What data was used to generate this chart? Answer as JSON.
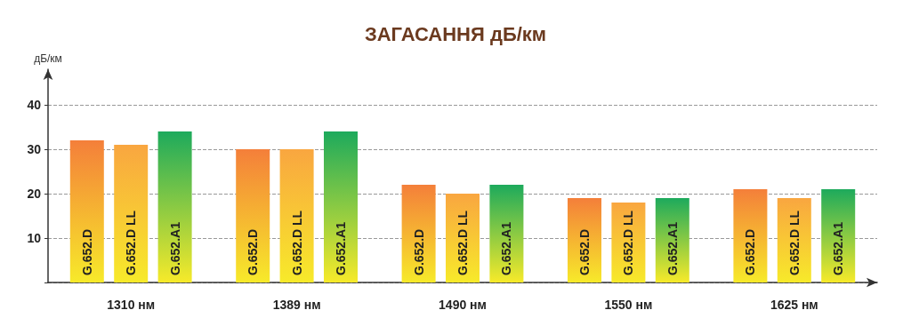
{
  "chart_data": {
    "type": "bar",
    "title": "ЗАГАСАННЯ дБ/км",
    "ylabel": "дБ/км",
    "categories": [
      "1310 нм",
      "1389 нм",
      "1490 нм",
      "1550 нм",
      "1625 нм"
    ],
    "series": [
      {
        "name": "G.652.D",
        "color": "#f47f3a",
        "values": [
          32,
          30,
          22,
          19,
          21
        ]
      },
      {
        "name": "G.652.D LL",
        "color": "#f9a640",
        "values": [
          31,
          30,
          20,
          18,
          19
        ]
      },
      {
        "name": "G.652.A1",
        "color": "#1daa5c",
        "values": [
          34,
          34,
          22,
          19,
          21
        ]
      }
    ],
    "ylim": [
      0,
      48
    ],
    "yticks": [
      {
        "value": 0,
        "label": null
      },
      10,
      20,
      30,
      40
    ],
    "grid": "y",
    "legend": false
  }
}
